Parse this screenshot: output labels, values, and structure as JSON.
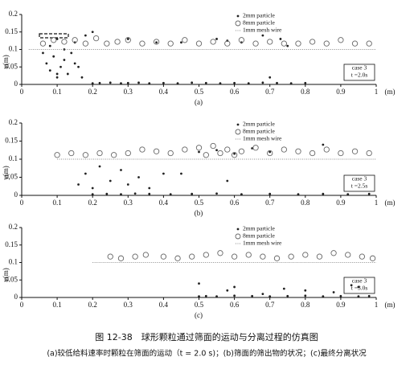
{
  "chart_data": [
    {
      "type": "scatter",
      "panel": "(a)",
      "xlabel": "(m)",
      "ylabel": "y(m)",
      "annotation": [
        "case 3",
        "t =2.0s"
      ],
      "xlim": [
        0,
        1
      ],
      "ylim": [
        0,
        0.2
      ],
      "xticks": [
        0,
        0.1,
        0.2,
        0.3,
        0.4,
        0.5,
        0.6,
        0.7,
        0.8,
        0.9,
        1
      ],
      "yticks": [
        0,
        0.05,
        0.1,
        0.15,
        0.2
      ],
      "series": [
        {
          "name": "2mm particle",
          "color": "#222222",
          "marker": "dot",
          "x": [
            0.06,
            0.07,
            0.08,
            0.08,
            0.09,
            0.1,
            0.1,
            0.11,
            0.12,
            0.12,
            0.13,
            0.14,
            0.15,
            0.16,
            0.17,
            0.18,
            0.2,
            0.22,
            0.25,
            0.28,
            0.3,
            0.33,
            0.36,
            0.4,
            0.44,
            0.48,
            0.52,
            0.56,
            0.6,
            0.64,
            0.68,
            0.72,
            0.76,
            0.8,
            0.1,
            0.15,
            0.2,
            0.3,
            0.38,
            0.45,
            0.55,
            0.62,
            0.7,
            0.75,
            0.58,
            0.68,
            0.73
          ],
          "values": [
            0.09,
            0.06,
            0.11,
            0.04,
            0.08,
            0.02,
            0.13,
            0.05,
            0.1,
            0.07,
            0.03,
            0.09,
            0.12,
            0.05,
            0.02,
            0.14,
            0.003,
            0.004,
            0.005,
            0.003,
            0.004,
            0.005,
            0.003,
            0.004,
            0.003,
            0.005,
            0.004,
            0.003,
            0.004,
            0.003,
            0.005,
            0.004,
            0.003,
            0.004,
            0.03,
            0.06,
            0.15,
            0.13,
            0.12,
            0.12,
            0.13,
            0.12,
            0.02,
            0.11,
            0.125,
            0.14,
            0.13
          ]
        },
        {
          "name": "8mm particle",
          "color": "#666666",
          "marker": "circle",
          "x": [
            0.06,
            0.09,
            0.12,
            0.15,
            0.18,
            0.21,
            0.24,
            0.27,
            0.3,
            0.34,
            0.38,
            0.42,
            0.46,
            0.5,
            0.54,
            0.58,
            0.62,
            0.66,
            0.7,
            0.74,
            0.78,
            0.82,
            0.86,
            0.9,
            0.94,
            0.98
          ],
          "values": [
            0.11,
            0.12,
            0.115,
            0.12,
            0.11,
            0.125,
            0.11,
            0.115,
            0.12,
            0.11,
            0.115,
            0.11,
            0.12,
            0.11,
            0.115,
            0.11,
            0.12,
            0.11,
            0.115,
            0.11,
            0.11,
            0.115,
            0.11,
            0.12,
            0.11,
            0.11
          ]
        },
        {
          "name": "1mm mesh wire",
          "color": "#888888",
          "marker": "dotted-line",
          "x": [
            0.02,
            1
          ],
          "values": [
            0.1,
            0.1
          ]
        }
      ]
    },
    {
      "type": "scatter",
      "panel": "(b)",
      "xlabel": "(m)",
      "ylabel": "y(m)",
      "annotation": [
        "case 3",
        "t =2.5s"
      ],
      "xlim": [
        0,
        1
      ],
      "ylim": [
        0,
        0.2
      ],
      "xticks": [
        0,
        0.1,
        0.2,
        0.3,
        0.4,
        0.5,
        0.6,
        0.7,
        0.8,
        0.9,
        1
      ],
      "yticks": [
        0,
        0.05,
        0.1,
        0.15,
        0.2
      ],
      "series": [
        {
          "name": "2mm particle",
          "color": "#222222",
          "marker": "dot",
          "x": [
            0.16,
            0.18,
            0.2,
            0.22,
            0.25,
            0.28,
            0.3,
            0.33,
            0.36,
            0.4,
            0.2,
            0.24,
            0.28,
            0.32,
            0.36,
            0.42,
            0.48,
            0.55,
            0.62,
            0.7,
            0.78,
            0.85,
            0.92,
            0.98,
            0.5,
            0.55,
            0.6,
            0.65,
            0.7,
            0.45,
            0.58,
            0.85
          ],
          "values": [
            0.03,
            0.06,
            0.02,
            0.08,
            0.04,
            0.07,
            0.03,
            0.05,
            0.02,
            0.06,
            0.003,
            0.004,
            0.003,
            0.005,
            0.004,
            0.003,
            0.004,
            0.005,
            0.003,
            0.004,
            0.003,
            0.004,
            0.003,
            0.004,
            0.12,
            0.125,
            0.115,
            0.13,
            0.12,
            0.06,
            0.04,
            0.14
          ]
        },
        {
          "name": "8mm particle",
          "color": "#666666",
          "marker": "circle",
          "x": [
            0.1,
            0.14,
            0.18,
            0.22,
            0.26,
            0.3,
            0.34,
            0.38,
            0.42,
            0.46,
            0.5,
            0.54,
            0.58,
            0.62,
            0.66,
            0.7,
            0.74,
            0.78,
            0.82,
            0.86,
            0.9,
            0.94,
            0.98,
            0.52,
            0.56,
            0.6
          ],
          "values": [
            0.105,
            0.11,
            0.105,
            0.11,
            0.105,
            0.11,
            0.12,
            0.115,
            0.11,
            0.12,
            0.125,
            0.13,
            0.12,
            0.115,
            0.125,
            0.11,
            0.12,
            0.115,
            0.11,
            0.12,
            0.11,
            0.115,
            0.11,
            0.105,
            0.11,
            0.105
          ]
        },
        {
          "name": "1mm mesh wire",
          "color": "#888888",
          "marker": "dotted-line",
          "x": [
            0.1,
            1
          ],
          "values": [
            0.1,
            0.1
          ]
        }
      ]
    },
    {
      "type": "scatter",
      "panel": "(c)",
      "xlabel": "(m)",
      "ylabel": "y(m)",
      "annotation": [
        "case 3",
        "t =3.0s"
      ],
      "xlim": [
        0,
        1
      ],
      "ylim": [
        0,
        0.2
      ],
      "xticks": [
        0,
        0.1,
        0.2,
        0.3,
        0.4,
        0.5,
        0.6,
        0.7,
        0.8,
        0.9,
        1
      ],
      "yticks": [
        0,
        0.05,
        0.1,
        0.15,
        0.2
      ],
      "series": [
        {
          "name": "2mm particle",
          "color": "#222222",
          "marker": "dot",
          "x": [
            0.5,
            0.52,
            0.55,
            0.6,
            0.65,
            0.7,
            0.75,
            0.8,
            0.85,
            0.9,
            0.95,
            0.98,
            0.5,
            0.58,
            0.6,
            0.68,
            0.74,
            0.8,
            0.88,
            0.93,
            0.95
          ],
          "values": [
            0.003,
            0.004,
            0.003,
            0.005,
            0.004,
            0.003,
            0.004,
            0.005,
            0.003,
            0.004,
            0.003,
            0.004,
            0.04,
            0.02,
            0.03,
            0.01,
            0.025,
            0.02,
            0.015,
            0.035,
            0.03
          ]
        },
        {
          "name": "8mm particle",
          "color": "#666666",
          "marker": "circle",
          "x": [
            0.25,
            0.28,
            0.32,
            0.35,
            0.4,
            0.44,
            0.48,
            0.52,
            0.56,
            0.6,
            0.64,
            0.68,
            0.72,
            0.76,
            0.8,
            0.84,
            0.88,
            0.92,
            0.96,
            0.99
          ],
          "values": [
            0.11,
            0.105,
            0.11,
            0.115,
            0.11,
            0.105,
            0.11,
            0.115,
            0.12,
            0.11,
            0.115,
            0.11,
            0.105,
            0.11,
            0.115,
            0.11,
            0.12,
            0.115,
            0.11,
            0.105
          ]
        },
        {
          "name": "1mm mesh wire",
          "color": "#888888",
          "marker": "dotted-line",
          "x": [
            0.2,
            1
          ],
          "values": [
            0.1,
            0.1
          ]
        }
      ]
    }
  ],
  "caption": {
    "title": "图 12-38　球形颗粒通过筛面的运动与分离过程的仿真图",
    "subtitle": "(a)较低给料速率时颗粒在筛面的运动（t = 2.0 s)；(b)筛面的筛出物的状况；(c)最终分离状况"
  }
}
